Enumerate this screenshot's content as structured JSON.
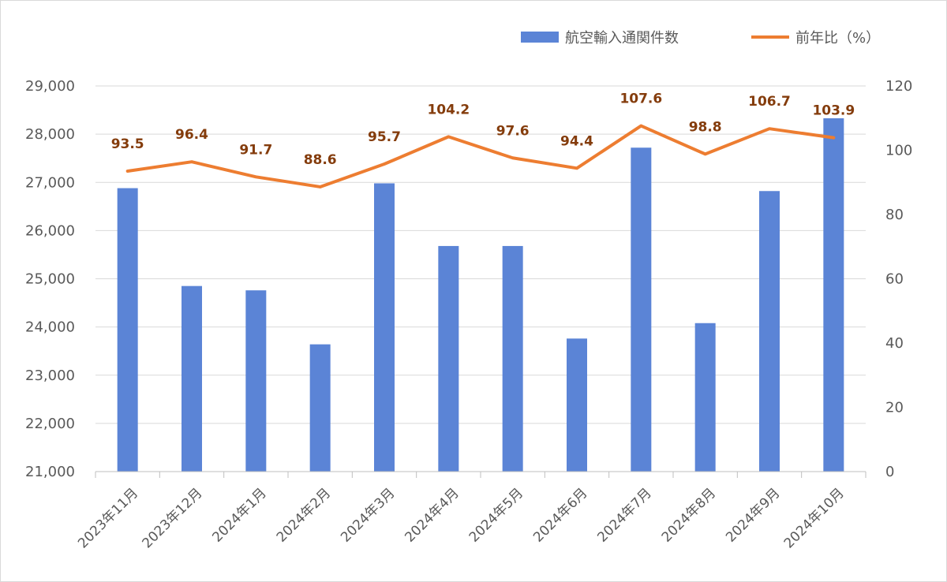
{
  "chart_data": {
    "type": "bar",
    "categories": [
      "2023年11月",
      "2023年12月",
      "2024年1月",
      "2024年2月",
      "2024年3月",
      "2024年4月",
      "2024年5月",
      "2024年6月",
      "2024年7月",
      "2024年8月",
      "2024年9月",
      "2024年10月"
    ],
    "series": [
      {
        "name": "航空輸入通関件数",
        "type": "bar",
        "axis": "left",
        "color": "#5b84d6",
        "values": [
          26880,
          24850,
          24760,
          23640,
          26980,
          25680,
          25680,
          23760,
          27720,
          24080,
          26820,
          28330
        ]
      },
      {
        "name": "前年比（%）",
        "type": "line",
        "axis": "right",
        "color": "#ed7d31",
        "values": [
          93.5,
          96.4,
          91.7,
          88.6,
          95.7,
          104.2,
          97.6,
          94.4,
          107.6,
          98.8,
          106.7,
          103.9
        ],
        "labels": [
          "93.5",
          "96.4",
          "91.7",
          "88.6",
          "95.7",
          "104.2",
          "97.6",
          "94.4",
          "107.6",
          "98.8",
          "106.7",
          "103.9"
        ]
      }
    ],
    "y_left": {
      "ylim": [
        21000,
        29000
      ],
      "ticks": [
        "21,000",
        "22,000",
        "23,000",
        "24,000",
        "25,000",
        "26,000",
        "27,000",
        "28,000",
        "29,000"
      ]
    },
    "y_right": {
      "ylim": [
        0,
        120
      ],
      "ticks": [
        "0",
        "20",
        "40",
        "60",
        "80",
        "100",
        "120"
      ]
    },
    "grid": true,
    "legend_position": "top-right"
  }
}
